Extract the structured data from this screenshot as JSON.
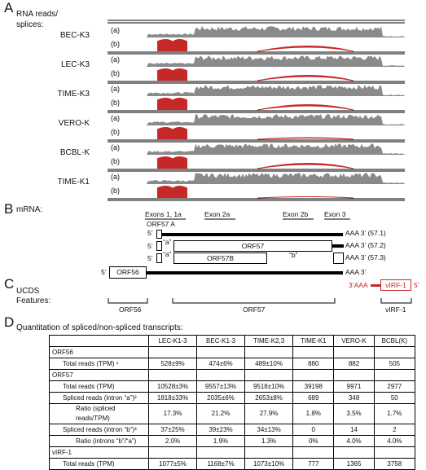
{
  "panelA": {
    "letter": "A",
    "title_l1": "RNA reads/",
    "title_l2": "splices:",
    "tracks": [
      {
        "name": "BEC-K3"
      },
      {
        "name": "LEC-K3"
      },
      {
        "name": "TIME-K3"
      },
      {
        "name": "VERO-K"
      },
      {
        "name": "BCBL-K"
      },
      {
        "name": "TIME-K1"
      }
    ],
    "sub_a": "(a)",
    "sub_b": "(b)",
    "colors": {
      "reads": "#8a8a8a",
      "splice": "#c62828"
    }
  },
  "panelB": {
    "letter": "B",
    "label": "mRNA:",
    "exon_labels": [
      "Exons 1, 1a",
      "Exon 2a",
      "Exon 2b",
      "Exon 3"
    ],
    "orf57a": "ORF57 A",
    "five_prime": "5’",
    "polyA": [
      "AAA 3’ (57.1)",
      "AAA 3’ (57.2)",
      "AAA 3’ (57.3)",
      "AAA 3’"
    ],
    "intron_a": "“a”",
    "intron_b": "“b”",
    "orf57": "ORF57",
    "orf57b": "ORF57B",
    "orf56": "ORF56"
  },
  "panelC": {
    "letter": "C",
    "label_l1": "UCDS",
    "label_l2": "Features:",
    "aaa": "3’AAA",
    "virf": "vIRF-1",
    "five": "5’",
    "brackets": [
      "ORF56",
      "ORF57",
      "vIRF-1"
    ],
    "color": "#c62828"
  },
  "panelD": {
    "letter": "D",
    "title": "Quantitation of spliced/non-spliced transcripts:",
    "columns": [
      "LEC-K1-3",
      "BEC-K1-3",
      "TIME-K2,3",
      "TIME-K1",
      "VERO-K",
      "BCBL(K)"
    ],
    "rows": [
      {
        "label": "ORF56",
        "indent": 0,
        "values": [
          "",
          "",
          "",
          "",
          "",
          ""
        ]
      },
      {
        "label": "Total reads (TPM) ¹",
        "indent": 1,
        "values": [
          "528±9%",
          "474±6%",
          "489±10%",
          "880",
          "882",
          "505"
        ]
      },
      {
        "label": "ORF57",
        "indent": 0,
        "values": [
          "",
          "",
          "",
          "",
          "",
          ""
        ]
      },
      {
        "label": "Total reads (TPM)",
        "indent": 1,
        "values": [
          "10528±3%",
          "9557±13%",
          "9518±10%",
          "39198",
          "9971",
          "2977"
        ]
      },
      {
        "label": "Spliced reads (intron “a”)²",
        "indent": 1,
        "values": [
          "1818±33%",
          "2035±6%",
          "2653±8%",
          "689",
          "348",
          "50"
        ]
      },
      {
        "label": "Ratio (spliced reads/TPM)",
        "indent": 2,
        "values": [
          "17.3%",
          "21.2%",
          "27.9%",
          "1.8%",
          "3.5%",
          "1.7%"
        ]
      },
      {
        "label": "Spliced reads (intron “b”)³",
        "indent": 1,
        "values": [
          "37±25%",
          "39±23%",
          "34±13%",
          "0",
          "14",
          "2"
        ]
      },
      {
        "label": "Ratio (introns “b”/“a”)",
        "indent": 2,
        "values": [
          "2.0%",
          "1.9%",
          "1.3%",
          "0%",
          "4.0%",
          "4.0%"
        ]
      },
      {
        "label": "vIRF-1",
        "indent": 0,
        "values": [
          "",
          "",
          "",
          "",
          "",
          ""
        ]
      },
      {
        "label": "Total reads (TPM)",
        "indent": 1,
        "values": [
          "1077±5%",
          "1168±7%",
          "1073±10%",
          "777",
          "1365",
          "3758"
        ]
      }
    ]
  }
}
